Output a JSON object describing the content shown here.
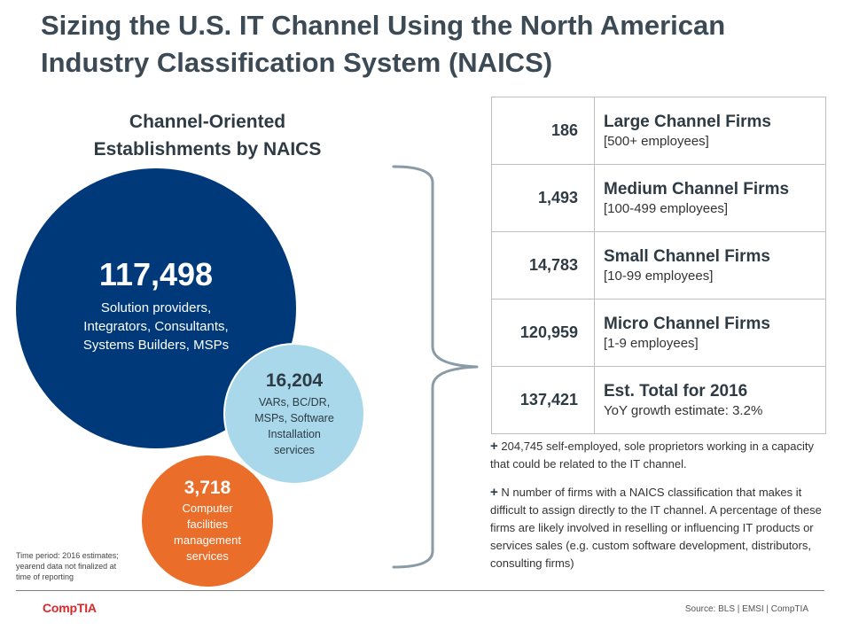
{
  "header": {
    "title": "Sizing the U.S. IT Channel Using the North American\nIndustry Classification System (NAICS)"
  },
  "left_panel": {
    "subtitle": "Channel-Oriented\nEstablishments by NAICS",
    "circles": [
      {
        "value": "117,498",
        "description": "Solution providers,\nIntegrators, Consultants,\nSystems Builders, MSPs",
        "color": "#00397a"
      },
      {
        "value": "16,204",
        "description": "VARs, BC/DR,\nMSPs, Software\nInstallation\nservices",
        "color": "#a8d8ea"
      },
      {
        "value": "3,718",
        "description": "Computer\nfacilities\nmanagement\nservices",
        "color": "#ea6d2a"
      }
    ],
    "time_note": "Time period: 2016 estimates;\nyearend data not finalized at\ntime of reporting"
  },
  "firm_sizes": [
    {
      "count": "186",
      "name": "Large Channel Firms",
      "detail": "[500+ employees]"
    },
    {
      "count": "1,493",
      "name": "Medium Channel Firms",
      "detail": "[100-499 employees]"
    },
    {
      "count": "14,783",
      "name": "Small Channel Firms",
      "detail": "[10-99 employees]"
    },
    {
      "count": "120,959",
      "name": "Micro Channel Firms",
      "detail": "[1-9 employees]"
    },
    {
      "count": "137,421",
      "name": "Est. Total for 2016",
      "detail": "YoY growth estimate: 3.2%"
    }
  ],
  "notes": [
    {
      "symbol": "+",
      "text": "204,745 self-employed, sole proprietors working in a capacity that could be related to the IT channel."
    },
    {
      "symbol": "+",
      "text": "N number of firms with a NAICS classification that makes it difficult to assign directly to the IT channel. A percentage of these firms are likely involved in reselling or influencing IT products or services sales (e.g. custom software development, distributors, consulting firms)"
    }
  ],
  "footer": {
    "logo": "CompTIA",
    "source": "Source: BLS | EMSI | CompTIA"
  },
  "colors": {
    "title": "#3c4a55",
    "brand_red": "#d9292b",
    "brace": "#8a9ba8"
  }
}
